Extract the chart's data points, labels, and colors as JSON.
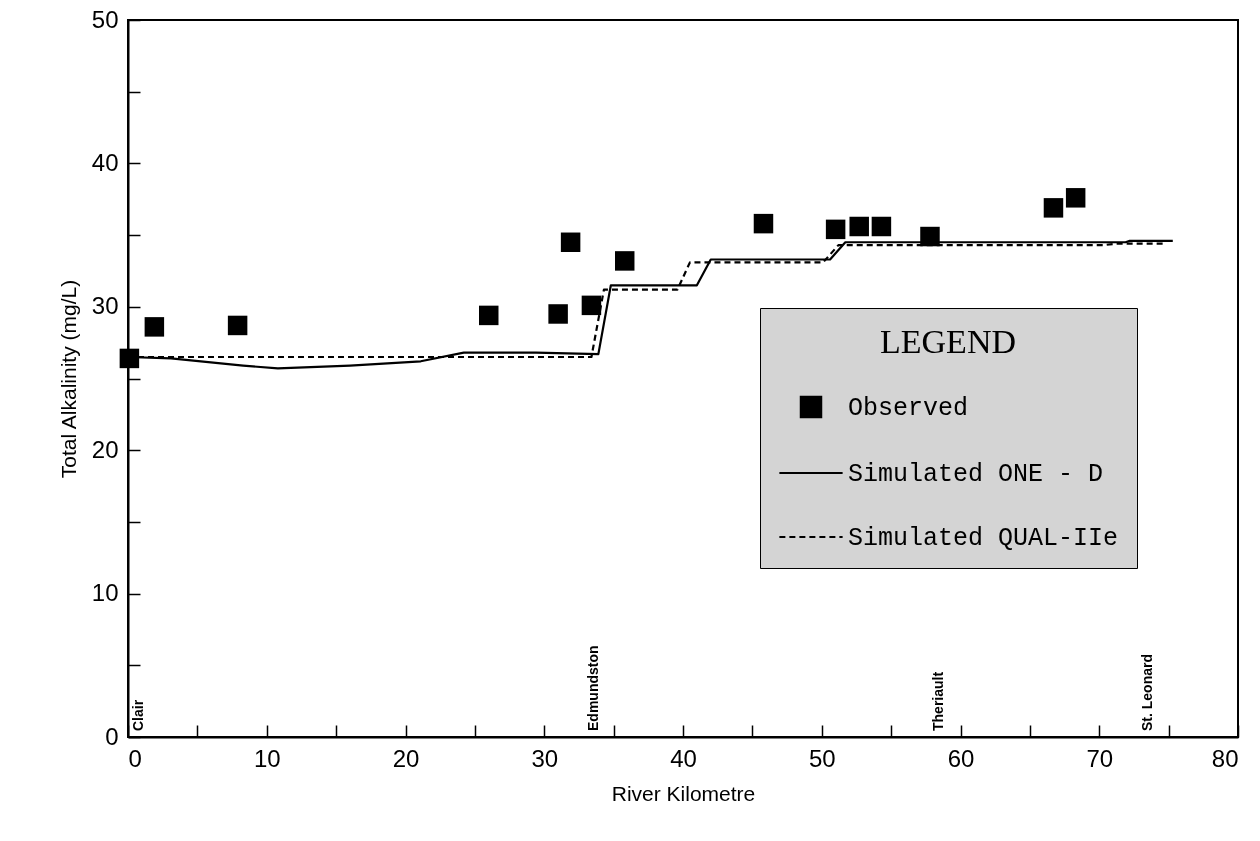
{
  "chart_data": {
    "type": "line",
    "xlabel": "River Kilometre",
    "ylabel": "Total Alkalinity (mg/L)",
    "legend_title": "LEGEND",
    "xlim": [
      0,
      80
    ],
    "ylim": [
      0,
      50
    ],
    "xticks": [
      0,
      {
        "value": 5,
        "label": null
      },
      10,
      {
        "value": 15,
        "label": null
      },
      20,
      {
        "value": 25,
        "label": null
      },
      30,
      {
        "value": 35,
        "label": null
      },
      40,
      {
        "value": 45,
        "label": null
      },
      50,
      {
        "value": 55,
        "label": null
      },
      60,
      {
        "value": 65,
        "label": null
      },
      70,
      {
        "value": 75,
        "label": null
      },
      80
    ],
    "yticks": [
      0,
      {
        "value": 5,
        "label": null
      },
      10,
      {
        "value": 15,
        "label": null
      },
      20,
      {
        "value": 25,
        "label": null
      },
      30,
      {
        "value": 35,
        "label": null
      },
      40,
      {
        "value": 45,
        "label": null
      },
      50
    ],
    "grid": false,
    "legend": "right",
    "series": [
      {
        "name": "Observed",
        "type": "scatter",
        "marker": "square",
        "color": "#000000",
        "x": [
          0.1,
          1.9,
          7.9,
          26.0,
          31.0,
          31.9,
          33.4,
          35.8,
          45.8,
          51.0,
          52.7,
          54.3,
          57.8,
          66.7,
          68.3
        ],
        "values": [
          26.4,
          28.6,
          28.7,
          29.4,
          29.5,
          34.5,
          30.1,
          33.2,
          35.8,
          35.4,
          35.6,
          35.6,
          34.9,
          36.9,
          37.6
        ]
      },
      {
        "name": "Simulated ONE - D",
        "line_style": "solid",
        "color": "#000000",
        "x": [
          0,
          3.1,
          8.3,
          10.8,
          16.0,
          21.1,
          24.2,
          29.4,
          33.9,
          34.8,
          41.0,
          42.0,
          50.6,
          51.7,
          71.9,
          72.2,
          75.3
        ],
        "values": [
          26.5,
          26.4,
          25.9,
          25.7,
          25.9,
          26.2,
          26.8,
          26.8,
          26.7,
          31.5,
          31.5,
          33.3,
          33.3,
          34.5,
          34.5,
          34.6,
          34.6
        ]
      },
      {
        "name": "Simulated QUAL-IIe",
        "type": "line",
        "line_style": "dashed",
        "color": "#000000",
        "x": [
          0,
          33.4,
          34.3,
          39.6,
          40.5,
          50.1,
          51.2,
          70.3,
          71.2,
          74.7
        ],
        "values": [
          26.5,
          26.5,
          31.2,
          31.2,
          33.1,
          33.1,
          34.3,
          34.3,
          34.4,
          34.4
        ]
      }
    ],
    "annotations": [
      "Clair",
      "Edmundston",
      "Theriault",
      "St. Leonard"
    ]
  }
}
